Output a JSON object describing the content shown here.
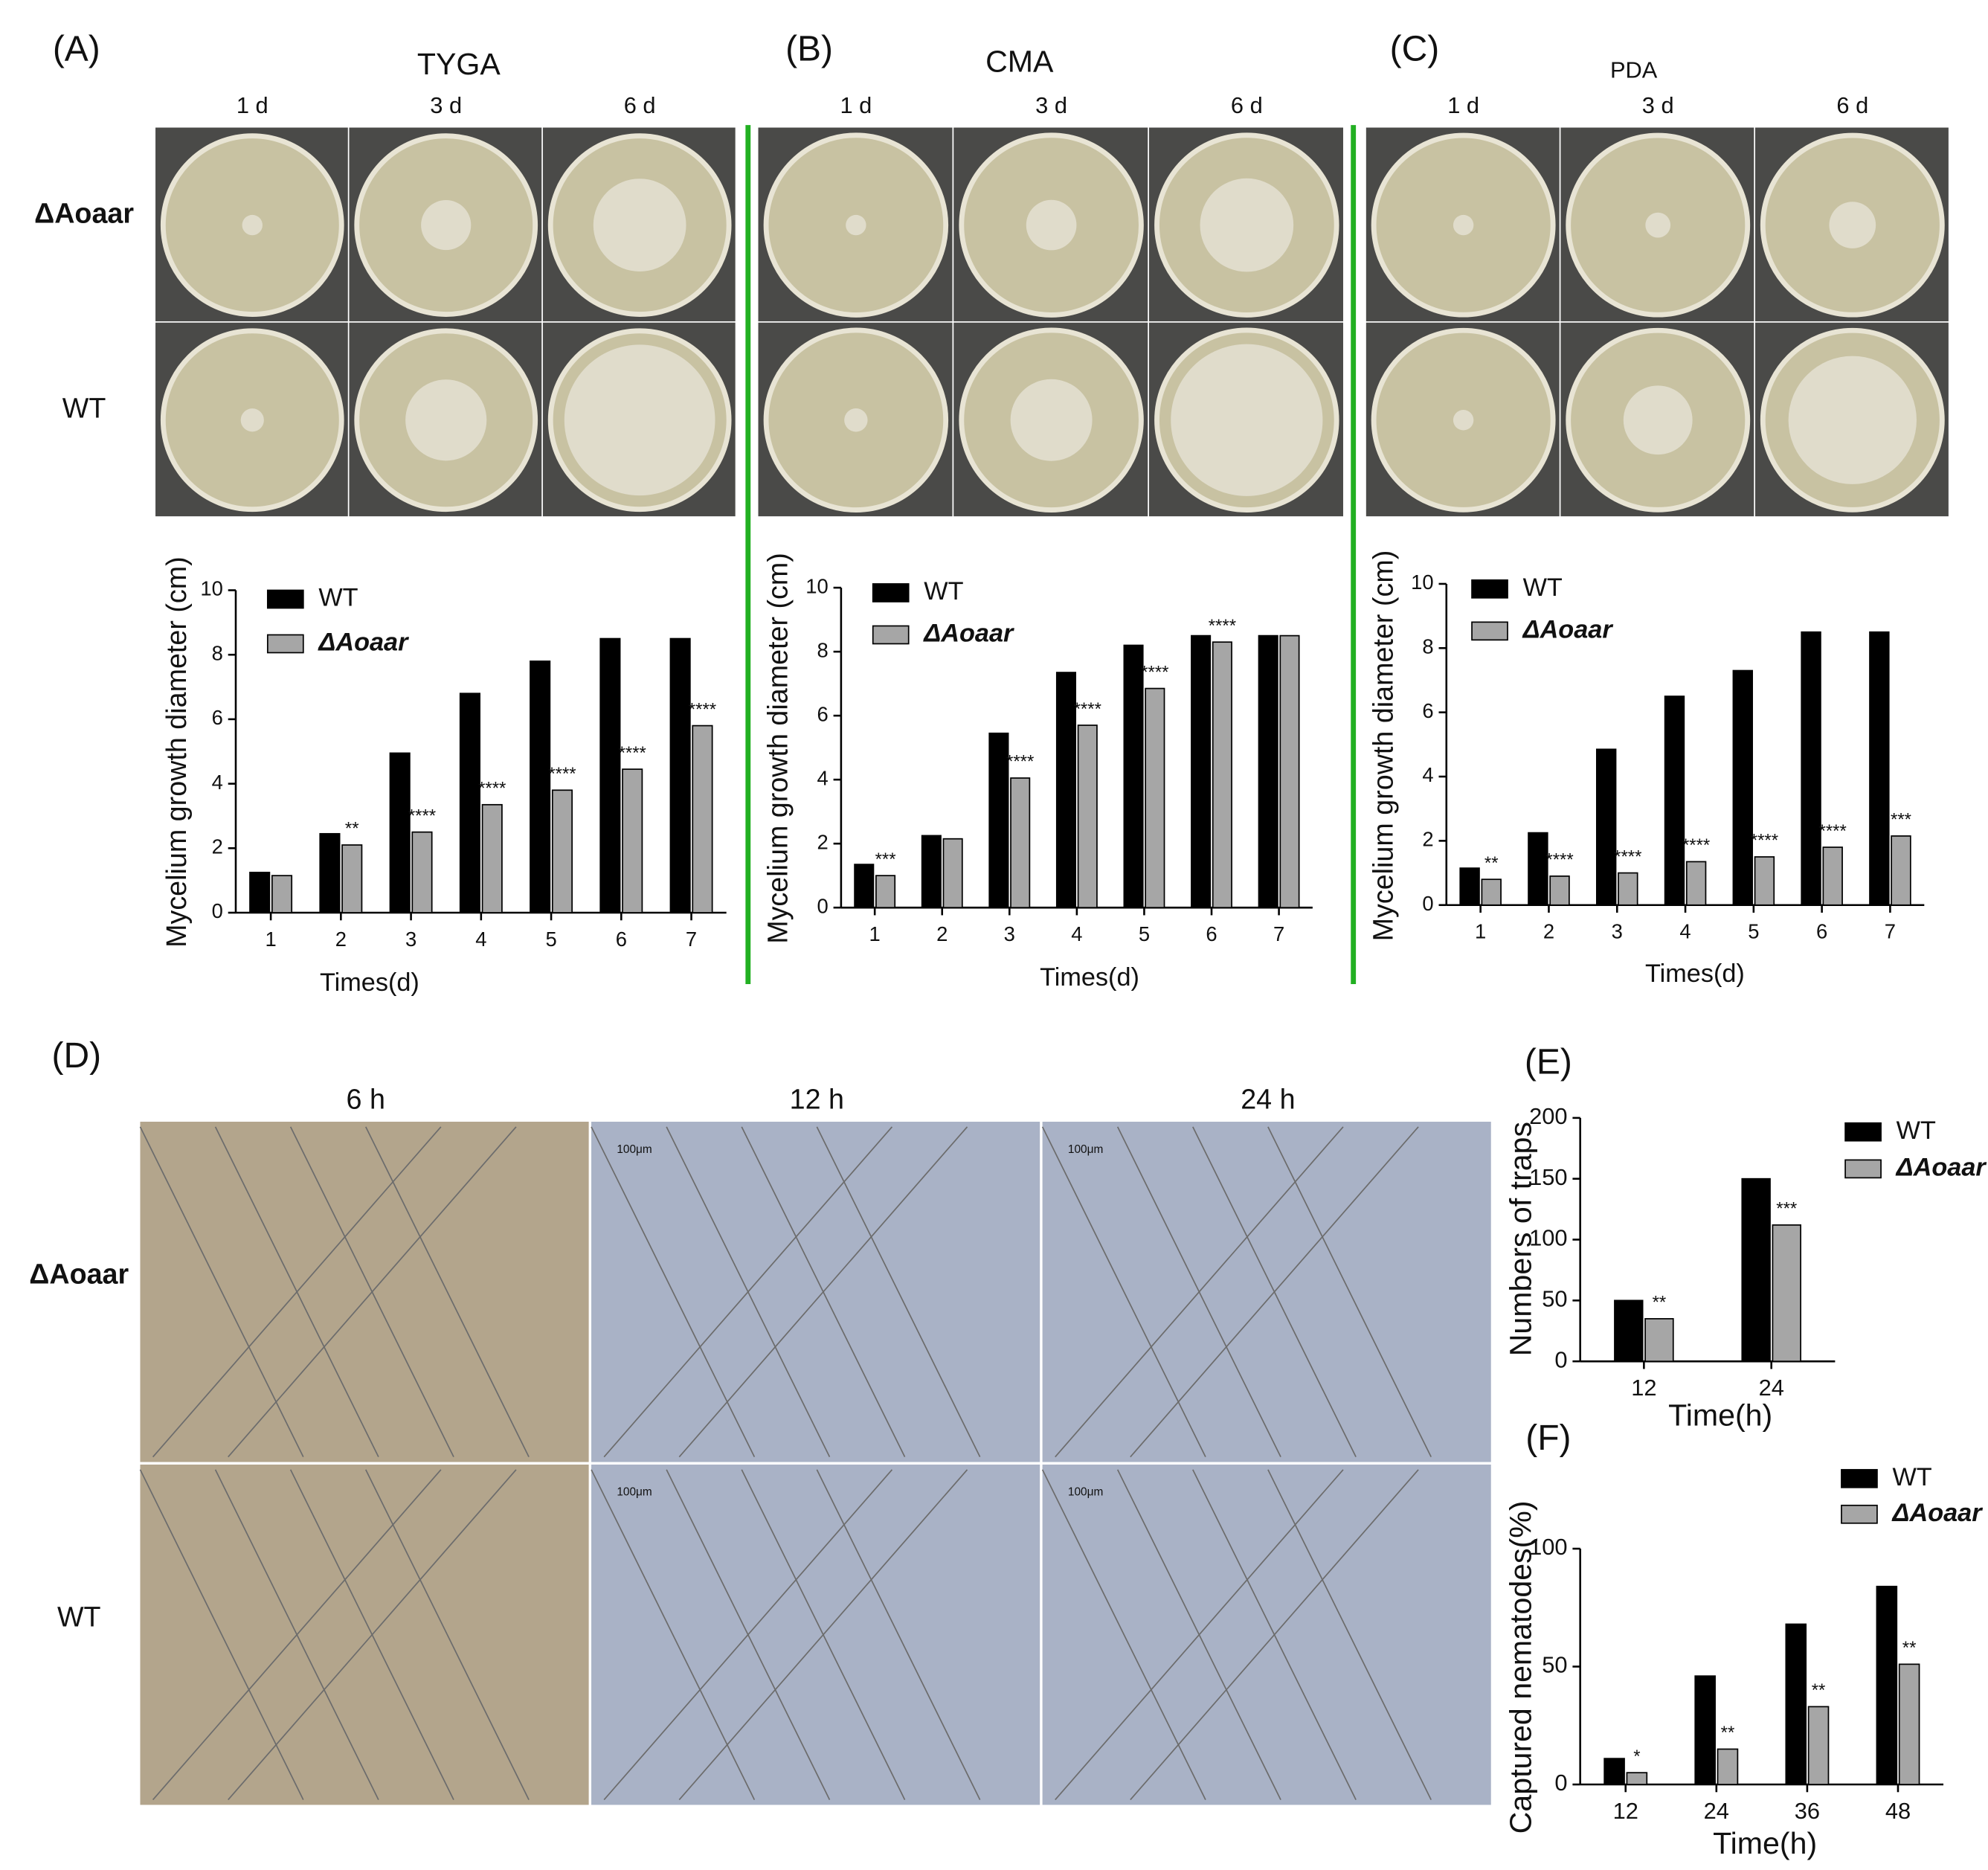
{
  "photo_panels": [
    {
      "panel_label": "(A)",
      "title": "TYGA",
      "columns": [
        "1 d",
        "3 d",
        "6 d"
      ],
      "rows": [
        "ΔAoaar",
        "WT"
      ]
    },
    {
      "panel_label": "(B)",
      "title": "CMA",
      "columns": [
        "1 d",
        "3 d",
        "6 d"
      ],
      "rows": [
        "ΔAoaar",
        "WT"
      ]
    },
    {
      "panel_label": "(C)",
      "title": "PDA",
      "columns": [
        "1 d",
        "3 d",
        "6 d"
      ],
      "rows": [
        "ΔAoaar",
        "WT"
      ]
    },
    {
      "panel_label": "(D)",
      "columns": [
        "6 h",
        "12 h",
        "24 h"
      ],
      "rows": [
        "ΔAoaar",
        "WT"
      ],
      "scale_bar": "100μm"
    }
  ],
  "chart_data": [
    {
      "type": "bar",
      "x_label": "Times(d)",
      "y_label": "Mycelium growth diameter (cm)",
      "categories": [
        1,
        2,
        3,
        4,
        5,
        6,
        7
      ],
      "series": [
        {
          "name": "WT",
          "color": "#000000",
          "values": [
            1.25,
            2.45,
            4.95,
            6.8,
            7.8,
            8.5,
            8.5
          ]
        },
        {
          "name": "ΔAoaar",
          "color": "#a6a6a6",
          "values": [
            1.15,
            2.1,
            2.5,
            3.35,
            3.8,
            4.45,
            5.8
          ],
          "annotations": [
            null,
            "**",
            "****",
            "****",
            "****",
            "****",
            "****"
          ]
        }
      ],
      "ylim": [
        0,
        10
      ],
      "yticks": [
        0,
        2,
        4,
        6,
        8,
        10
      ]
    },
    {
      "type": "bar",
      "x_label": "Times(d)",
      "y_label": "Mycelium growth diameter (cm)",
      "categories": [
        1,
        2,
        3,
        4,
        5,
        6,
        7
      ],
      "series": [
        {
          "name": "WT",
          "color": "#000000",
          "values": [
            1.35,
            2.25,
            5.45,
            7.35,
            8.2,
            8.5,
            8.5
          ]
        },
        {
          "name": "ΔAoaar",
          "color": "#a6a6a6",
          "values": [
            1.0,
            2.15,
            4.05,
            5.7,
            6.85,
            8.3,
            8.5
          ],
          "annotations": [
            "***",
            null,
            "****",
            "****",
            "****",
            "****",
            null
          ]
        }
      ],
      "ylim": [
        0,
        10
      ],
      "yticks": [
        0,
        2,
        4,
        6,
        8,
        10
      ]
    },
    {
      "type": "bar",
      "x_label": "Times(d)",
      "y_label": "Mycelium growth diameter (cm)",
      "categories": [
        1,
        2,
        3,
        4,
        5,
        6,
        7
      ],
      "series": [
        {
          "name": "WT",
          "color": "#000000",
          "values": [
            1.15,
            2.25,
            4.85,
            6.5,
            7.3,
            8.5,
            8.5
          ]
        },
        {
          "name": "ΔAoaar",
          "color": "#a6a6a6",
          "values": [
            0.8,
            0.9,
            1.0,
            1.35,
            1.5,
            1.8,
            2.15
          ],
          "annotations": [
            "**",
            "****",
            "****",
            "****",
            "****",
            "****",
            "***"
          ]
        }
      ],
      "ylim": [
        0,
        10
      ],
      "yticks": [
        0,
        2,
        4,
        6,
        8,
        10
      ]
    },
    {
      "type": "bar",
      "panel_label": "(E)",
      "x_label": "Time(h)",
      "y_label": "Numbers of traps",
      "categories": [
        12,
        24
      ],
      "series": [
        {
          "name": "WT",
          "color": "#000000",
          "values": [
            50,
            150
          ]
        },
        {
          "name": "ΔAoaar",
          "color": "#a6a6a6",
          "values": [
            35,
            112
          ],
          "annotations": [
            "**",
            "***"
          ]
        }
      ],
      "ylim": [
        0,
        200
      ],
      "yticks": [
        0,
        50,
        100,
        150,
        200
      ]
    },
    {
      "type": "bar",
      "panel_label": "(F)",
      "x_label": "Time(h)",
      "y_label": "Captured nematodes(%)",
      "categories": [
        12,
        24,
        36,
        48
      ],
      "series": [
        {
          "name": "WT",
          "color": "#000000",
          "values": [
            11,
            46,
            68,
            84
          ]
        },
        {
          "name": "ΔAoaar",
          "color": "#a6a6a6",
          "values": [
            5,
            15,
            33,
            51
          ],
          "annotations": [
            "*",
            "**",
            "**",
            "**"
          ]
        }
      ],
      "ylim": [
        0,
        100
      ],
      "yticks": [
        0,
        50,
        100
      ]
    }
  ]
}
